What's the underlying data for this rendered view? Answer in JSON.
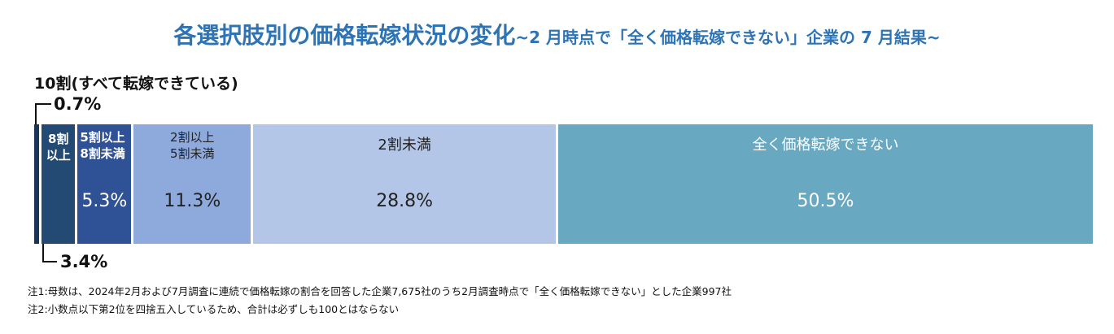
{
  "chart_data": {
    "type": "stacked_bar_100",
    "title": "各選択肢別の価格転嫁状況の変化",
    "subtitle": "~2 月時点で「全く価格転嫁できない」企業の 7 月結果~",
    "series": [
      {
        "name": "10割(すべて転嫁できている)",
        "color": "#1b3556",
        "values": [
          0.7
        ],
        "value_labels": [
          "0.7%"
        ]
      },
      {
        "name": "8割\n以上",
        "color": "#234a72",
        "values": [
          3.4
        ],
        "value_labels": [
          "3.4%"
        ]
      },
      {
        "name": "5割以上\n8割未満",
        "color": "#2f5196",
        "values": [
          5.3
        ],
        "value_labels": [
          "5.3%"
        ]
      },
      {
        "name": "2割以上\n5割未満",
        "color": "#8ea9db",
        "values": [
          11.3
        ],
        "value_labels": [
          "11.3%"
        ]
      },
      {
        "name": "2割未満",
        "color": "#b4c6e7",
        "values": [
          28.8
        ],
        "value_labels": [
          "28.8%"
        ]
      },
      {
        "name": "全く価格転嫁できない",
        "color": "#69a8c1",
        "values": [
          50.5
        ],
        "value_labels": [
          "50.5%"
        ]
      }
    ],
    "notes": [
      "注1:母数は、2024年2月および7月調査に連続で価格転嫁の割合を回答した企業7,675社のうち2月調査時点で「全く価格転嫁できない」とした企業997社",
      "注2:小数点以下第2位を四捨五入しているため、合計は必ずしも100とはならない"
    ]
  }
}
